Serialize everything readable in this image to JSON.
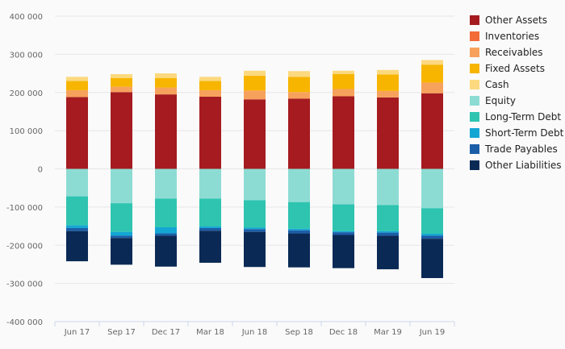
{
  "chart_data": {
    "type": "bar",
    "stacked": true,
    "title": "",
    "xlabel": "",
    "ylabel": "",
    "ylim": [
      -400000,
      400000
    ],
    "yticks": [
      400000,
      300000,
      200000,
      100000,
      0,
      -100000,
      -200000,
      -300000,
      -400000
    ],
    "ytick_labels": [
      "400 000",
      "300 000",
      "200 000",
      "100 000",
      "0",
      "-100 000",
      "-200 000",
      "-300 000",
      "-400 000"
    ],
    "grid": true,
    "legend_position": "right",
    "categories": [
      "Jun 17",
      "Sep 17",
      "Dec 17",
      "Mar 18",
      "Jun 18",
      "Sep 18",
      "Dec 18",
      "Mar 19",
      "Jun 19"
    ],
    "series": [
      {
        "name": "Other Assets",
        "color": "#a51b20",
        "values": [
          188000,
          201000,
          195000,
          189000,
          182000,
          184000,
          190000,
          187000,
          198000
        ]
      },
      {
        "name": "Inventories",
        "color": "#f26b38",
        "values": [
          0,
          0,
          0,
          0,
          0,
          0,
          0,
          0,
          0
        ]
      },
      {
        "name": "Receivables",
        "color": "#f7a25c",
        "values": [
          18000,
          14000,
          18000,
          17000,
          23000,
          17000,
          19000,
          17000,
          28000
        ]
      },
      {
        "name": "Fixed Assets",
        "color": "#f7b500",
        "values": [
          24000,
          23000,
          25000,
          24000,
          39000,
          40000,
          39000,
          43000,
          47000
        ]
      },
      {
        "name": "Cash",
        "color": "#fcd97e",
        "values": [
          11000,
          10000,
          12000,
          11000,
          13000,
          15000,
          9000,
          12000,
          12000
        ]
      },
      {
        "name": "Equity",
        "color": "#8ddcd4",
        "values": [
          -72000,
          -90000,
          -78000,
          -78000,
          -82000,
          -87000,
          -93000,
          -95000,
          -103000
        ]
      },
      {
        "name": "Long-Term Debt",
        "color": "#2ec4b0",
        "values": [
          -76000,
          -75000,
          -75000,
          -73000,
          -72000,
          -70000,
          -70000,
          -68000,
          -67000
        ]
      },
      {
        "name": "Short-Term Debt",
        "color": "#13a6d3",
        "values": [
          -7000,
          -10000,
          -16000,
          -4000,
          -4000,
          -4000,
          -3000,
          -4000,
          -5000
        ]
      },
      {
        "name": "Trade Payables",
        "color": "#1b5ea8",
        "values": [
          -8000,
          -6000,
          -6000,
          -7000,
          -7000,
          -8000,
          -7000,
          -8000,
          -8000
        ]
      },
      {
        "name": "Other Liabilities",
        "color": "#0a2a55",
        "values": [
          -79000,
          -70000,
          -81000,
          -84000,
          -92000,
          -89000,
          -87000,
          -88000,
          -103000
        ]
      }
    ]
  }
}
